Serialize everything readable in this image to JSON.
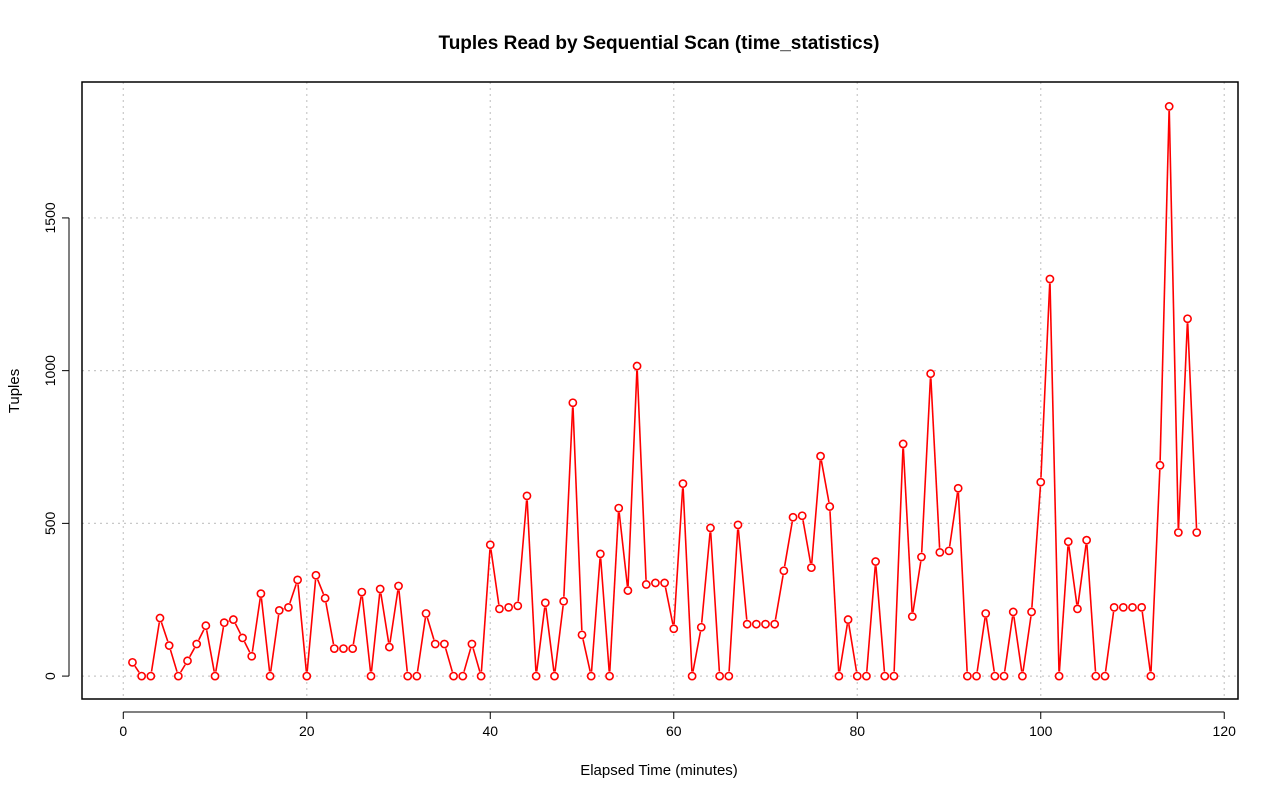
{
  "chart_data": {
    "type": "line",
    "title": "Tuples Read by Sequential Scan (time_statistics)",
    "xlabel": "Elapsed Time (minutes)",
    "ylabel": "Tuples",
    "xlim": [
      -4.5,
      121.5
    ],
    "ylim": [
      -75,
      1945
    ],
    "x_ticks": [
      0,
      20,
      40,
      60,
      80,
      100,
      120
    ],
    "y_ticks": [
      0,
      500,
      1000,
      1500
    ],
    "grid": true,
    "line_color": "#ff0000",
    "marker": "open-circle",
    "series": [
      {
        "x": [
          1,
          2,
          3,
          4,
          5,
          6,
          7,
          8,
          9,
          10,
          11,
          12,
          13,
          14,
          15,
          16,
          17,
          18,
          19,
          20,
          21,
          22,
          23,
          24,
          25,
          26,
          27,
          28,
          29,
          30,
          31,
          32,
          33,
          34,
          35,
          36,
          37,
          38,
          39,
          40,
          41,
          42,
          43,
          44,
          45,
          46,
          47,
          48,
          49,
          50,
          51,
          52,
          53,
          54,
          55,
          56,
          57,
          58,
          59,
          60,
          61,
          62,
          63,
          64,
          65,
          66,
          67,
          68,
          69,
          70,
          71,
          72,
          73,
          74,
          75,
          76,
          77,
          78,
          79,
          80,
          81,
          82,
          83,
          84,
          85,
          86,
          87,
          88,
          89,
          90,
          91,
          92,
          93,
          94,
          95,
          96,
          97,
          98,
          99,
          100,
          101,
          102,
          103,
          104,
          105,
          106,
          107,
          108,
          109,
          110,
          111,
          112,
          113,
          114,
          115,
          116,
          117
        ],
        "values": [
          45,
          0,
          0,
          190,
          100,
          0,
          50,
          105,
          165,
          0,
          175,
          185,
          125,
          65,
          270,
          0,
          215,
          225,
          315,
          0,
          330,
          255,
          90,
          90,
          90,
          275,
          0,
          285,
          95,
          295,
          0,
          0,
          205,
          105,
          105,
          0,
          0,
          105,
          0,
          430,
          220,
          225,
          230,
          590,
          0,
          240,
          0,
          245,
          895,
          135,
          0,
          400,
          0,
          550,
          280,
          1015,
          300,
          305,
          305,
          155,
          630,
          0,
          160,
          485,
          0,
          0,
          495,
          170,
          170,
          170,
          170,
          345,
          520,
          525,
          355,
          720,
          555,
          0,
          185,
          0,
          0,
          375,
          0,
          0,
          760,
          195,
          390,
          990,
          405,
          410,
          615,
          0,
          0,
          205,
          0,
          0,
          210,
          0,
          210,
          635,
          1300,
          0,
          440,
          220,
          445,
          0,
          0,
          225,
          225,
          225,
          225,
          0,
          690,
          1865,
          470,
          1170,
          470
        ]
      }
    ]
  }
}
